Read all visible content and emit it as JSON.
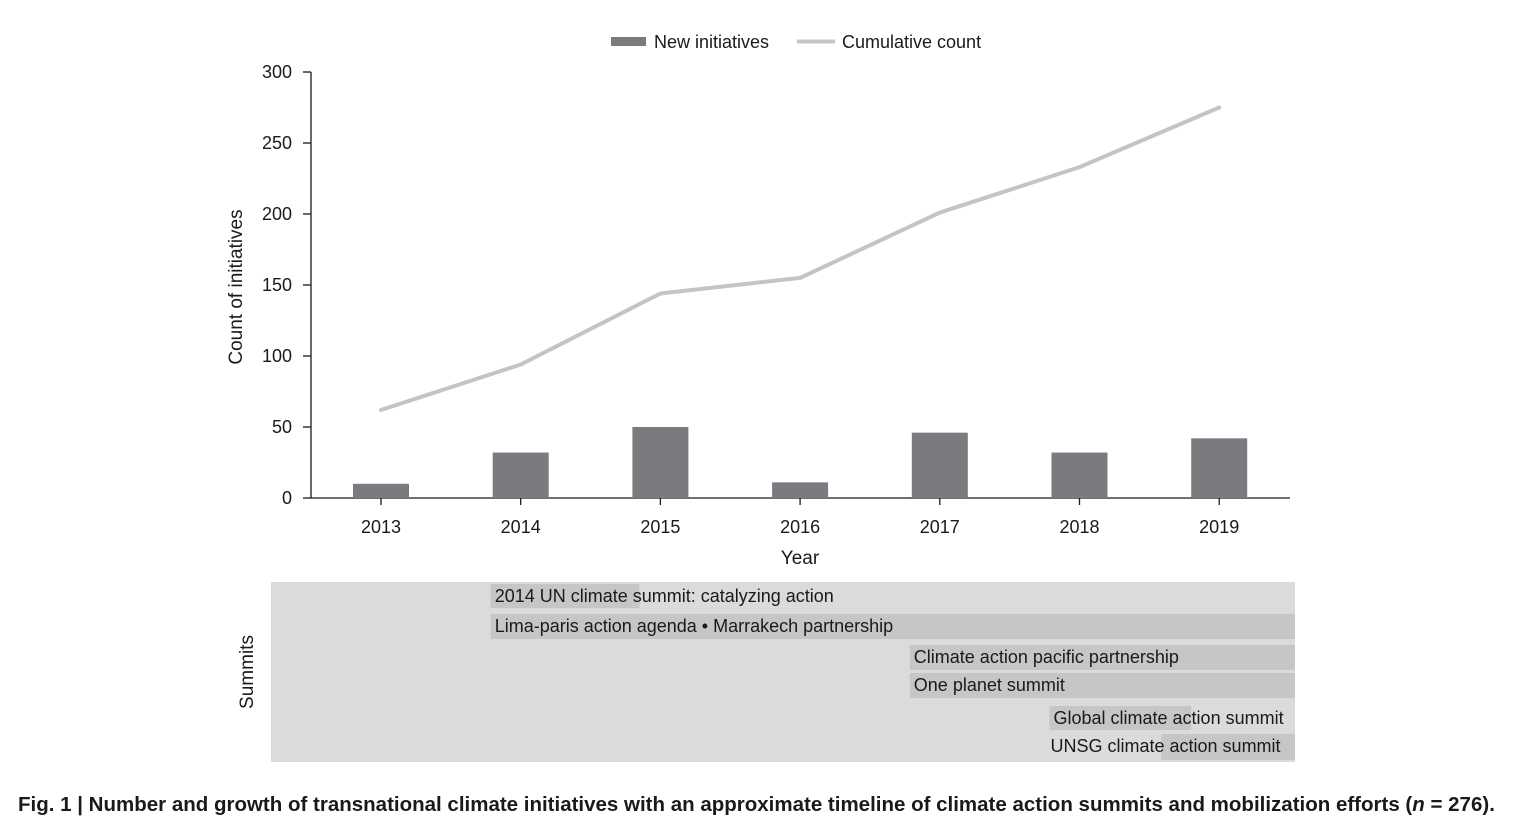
{
  "chart_data": {
    "type": "bar",
    "categories": [
      "2013",
      "2014",
      "2015",
      "2016",
      "2017",
      "2018",
      "2019"
    ],
    "series": [
      {
        "name": "New initiatives",
        "type": "bar",
        "values": [
          10,
          32,
          50,
          11,
          46,
          32,
          42
        ],
        "color": "#7b7b7f"
      },
      {
        "name": "Cumulative count",
        "type": "line",
        "values": [
          62,
          94,
          144,
          155,
          201,
          233,
          275
        ],
        "color": "#c4c4c4"
      }
    ],
    "xlabel": "Year",
    "ylabel": "Count of initiatives",
    "ylim": [
      0,
      300
    ],
    "yticks": [
      0,
      50,
      100,
      150,
      200,
      250,
      300
    ],
    "legend_position": "top-center",
    "grid": false
  },
  "summits": {
    "label": "Summits",
    "items": [
      {
        "label": "2014 UN climate summit: catalyzing action",
        "start_year": 2014,
        "end_year": 2014.85
      },
      {
        "label": "Lima-paris action agenda • Marrakech partnership",
        "start_year": 2014,
        "end_year": 2019.55
      },
      {
        "label": "Climate action pacific partnership",
        "start_year": 2017,
        "end_year": 2019.55
      },
      {
        "label": "One planet summit",
        "start_year": 2017,
        "end_year": 2019.55
      },
      {
        "label": "Global climate action summit",
        "start_year": 2018,
        "end_year": 2018.8
      },
      {
        "label": "UNSG climate action summit",
        "start_year": 2018.8,
        "end_year": 2019.55
      }
    ]
  },
  "caption": {
    "prefix": "Fig. 1 |",
    "text_before_n": " Number and growth of transnational climate initiatives with an approximate timeline of climate action summits and mobilization efforts (",
    "n_symbol": "n",
    "text_after_n": " = 276)."
  },
  "colors": {
    "bar": "#7b7b7f",
    "line": "#c4c4c4",
    "summit_panel": "#dadbdd",
    "summit_band": "#c5c6c8",
    "axis": "#1a1a1a"
  }
}
